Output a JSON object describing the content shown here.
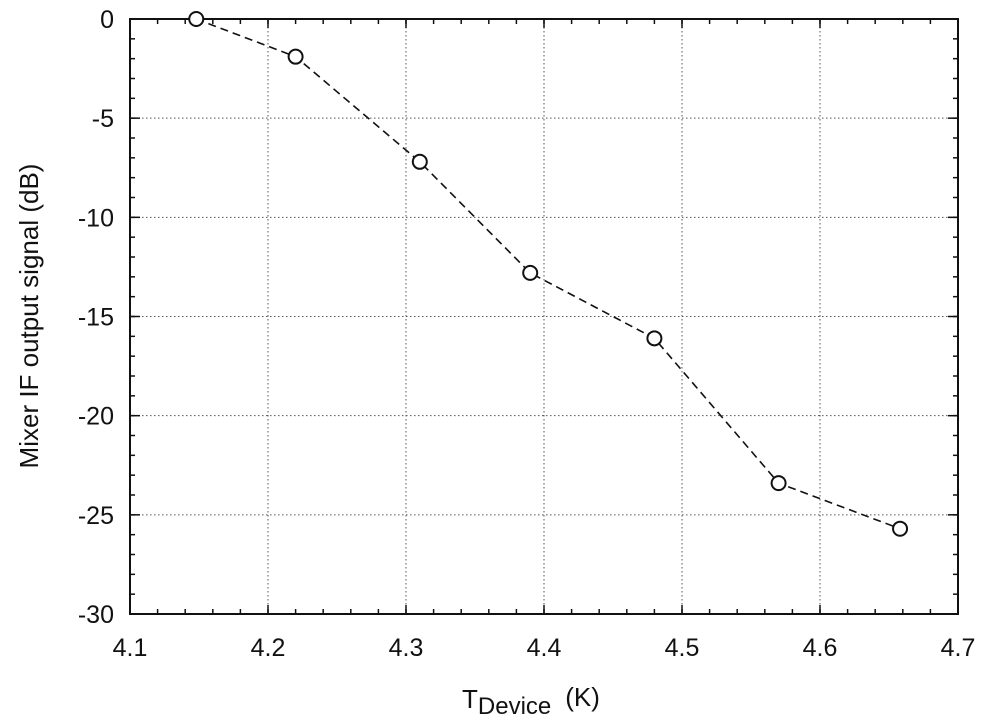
{
  "chart_data": {
    "type": "line",
    "title": "",
    "xlabel_main": "T",
    "xlabel_sub": "Device",
    "xlabel_unit": "(K)",
    "ylabel": "Mixer IF output signal (dB)",
    "xlim": [
      4.1,
      4.7
    ],
    "ylim": [
      -30,
      0
    ],
    "xticks": [
      4.1,
      4.2,
      4.3,
      4.4,
      4.5,
      4.6,
      4.7
    ],
    "xtick_labels": [
      "4.1",
      "4.2",
      "4.3",
      "4.4",
      "4.5",
      "4.6",
      "4.7"
    ],
    "yticks": [
      0,
      -5,
      -10,
      -15,
      -20,
      -25,
      -30
    ],
    "ytick_labels": [
      "0",
      "-5",
      "-10",
      "-15",
      "-20",
      "-25",
      "-30"
    ],
    "grid": true,
    "series": [
      {
        "line_style": "dashed",
        "marker": "open-circle",
        "x": [
          4.148,
          4.22,
          4.31,
          4.39,
          4.48,
          4.57,
          4.658
        ],
        "y": [
          0,
          -1.9,
          -7.2,
          -12.8,
          -16.1,
          -23.4,
          -25.7
        ]
      }
    ]
  }
}
